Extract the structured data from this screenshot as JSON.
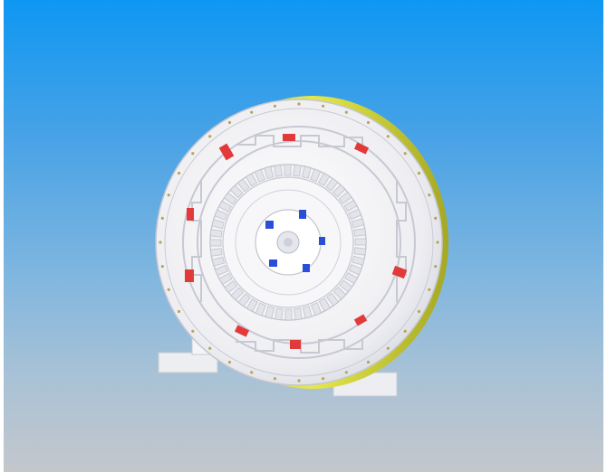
{
  "scene": {
    "subject": "motor-cad-render",
    "background_top": "#0e97f3",
    "background_bottom": "#c3c7cc",
    "housing_color": "#f4f4f6",
    "rim_color": "#d8dc3a",
    "magnet_red": "#e23a3a",
    "magnet_blue": "#2a4fd6"
  }
}
